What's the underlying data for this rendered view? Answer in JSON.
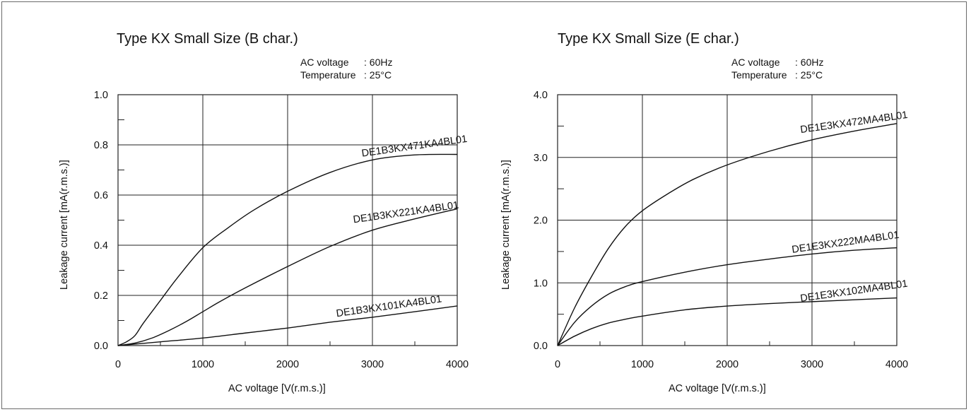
{
  "chart_data": [
    {
      "type": "line",
      "title": "Type KX Small Size (B char.)",
      "conditions": [
        {
          "label": "AC voltage",
          "value": ": 60Hz"
        },
        {
          "label": "Temperature",
          "value": ": 25°C"
        }
      ],
      "xlabel": "AC voltage [V(r.m.s.)]",
      "ylabel": "Leakage current [mA(r.m.s.)]",
      "xlim": [
        0,
        4000
      ],
      "ylim": [
        0,
        1.0
      ],
      "x_ticks": [
        "0",
        "1000",
        "2000",
        "3000",
        "4000"
      ],
      "y_ticks": [
        "0.0",
        "0.2",
        "0.4",
        "0.6",
        "0.8",
        "1.0"
      ],
      "grid": true,
      "series": [
        {
          "name": "DE1B3KX471KA4BL01",
          "x": [
            0,
            100,
            200,
            300,
            500,
            700,
            1000,
            1300,
            1600,
            2000,
            2500,
            3000,
            3500,
            4000
          ],
          "y": [
            0.0,
            0.015,
            0.04,
            0.09,
            0.18,
            0.27,
            0.39,
            0.47,
            0.54,
            0.615,
            0.69,
            0.74,
            0.76,
            0.762
          ]
        },
        {
          "name": "DE1B3KX221KA4BL01",
          "x": [
            0,
            200,
            400,
            600,
            800,
            1000,
            1200,
            1500,
            2000,
            2500,
            3000,
            3500,
            4000
          ],
          "y": [
            0.0,
            0.01,
            0.03,
            0.06,
            0.095,
            0.135,
            0.175,
            0.23,
            0.315,
            0.395,
            0.46,
            0.505,
            0.545
          ]
        },
        {
          "name": "DE1B3KX101KA4BL01",
          "x": [
            0,
            500,
            1000,
            1500,
            2000,
            2500,
            3000,
            3500,
            4000
          ],
          "y": [
            0.0,
            0.015,
            0.03,
            0.05,
            0.07,
            0.093,
            0.113,
            0.135,
            0.158
          ]
        }
      ]
    },
    {
      "type": "line",
      "title": "Type KX Small Size (E char.)",
      "conditions": [
        {
          "label": "AC voltage",
          "value": ": 60Hz"
        },
        {
          "label": "Temperature",
          "value": ": 25°C"
        }
      ],
      "xlabel": "AC voltage [V(r.m.s.)]",
      "ylabel": "Leakage current [mA(r.m.s.)]",
      "xlim": [
        0,
        4000
      ],
      "ylim": [
        0,
        4.0
      ],
      "x_ticks": [
        "0",
        "1000",
        "2000",
        "3000",
        "4000"
      ],
      "y_ticks": [
        "0.0",
        "1.0",
        "2.0",
        "3.0",
        "4.0"
      ],
      "grid": true,
      "series": [
        {
          "name": "DE1E3KX472MA4BL01",
          "x": [
            0,
            200,
            400,
            600,
            800,
            1000,
            1300,
            1600,
            2000,
            2500,
            3000,
            3500,
            4000
          ],
          "y": [
            0.0,
            0.6,
            1.1,
            1.55,
            1.9,
            2.15,
            2.42,
            2.65,
            2.88,
            3.1,
            3.28,
            3.42,
            3.54
          ]
        },
        {
          "name": "DE1E3KX222MA4BL01",
          "x": [
            0,
            200,
            400,
            600,
            800,
            1000,
            1500,
            2000,
            2500,
            3000,
            3500,
            4000
          ],
          "y": [
            0.0,
            0.37,
            0.63,
            0.82,
            0.94,
            1.02,
            1.17,
            1.29,
            1.38,
            1.46,
            1.52,
            1.56
          ]
        },
        {
          "name": "DE1E3KX102MA4BL01",
          "x": [
            0,
            200,
            400,
            600,
            800,
            1000,
            1500,
            2000,
            2500,
            3000,
            3500,
            4000
          ],
          "y": [
            0.0,
            0.15,
            0.27,
            0.36,
            0.42,
            0.47,
            0.57,
            0.63,
            0.67,
            0.7,
            0.73,
            0.76
          ]
        }
      ]
    }
  ]
}
